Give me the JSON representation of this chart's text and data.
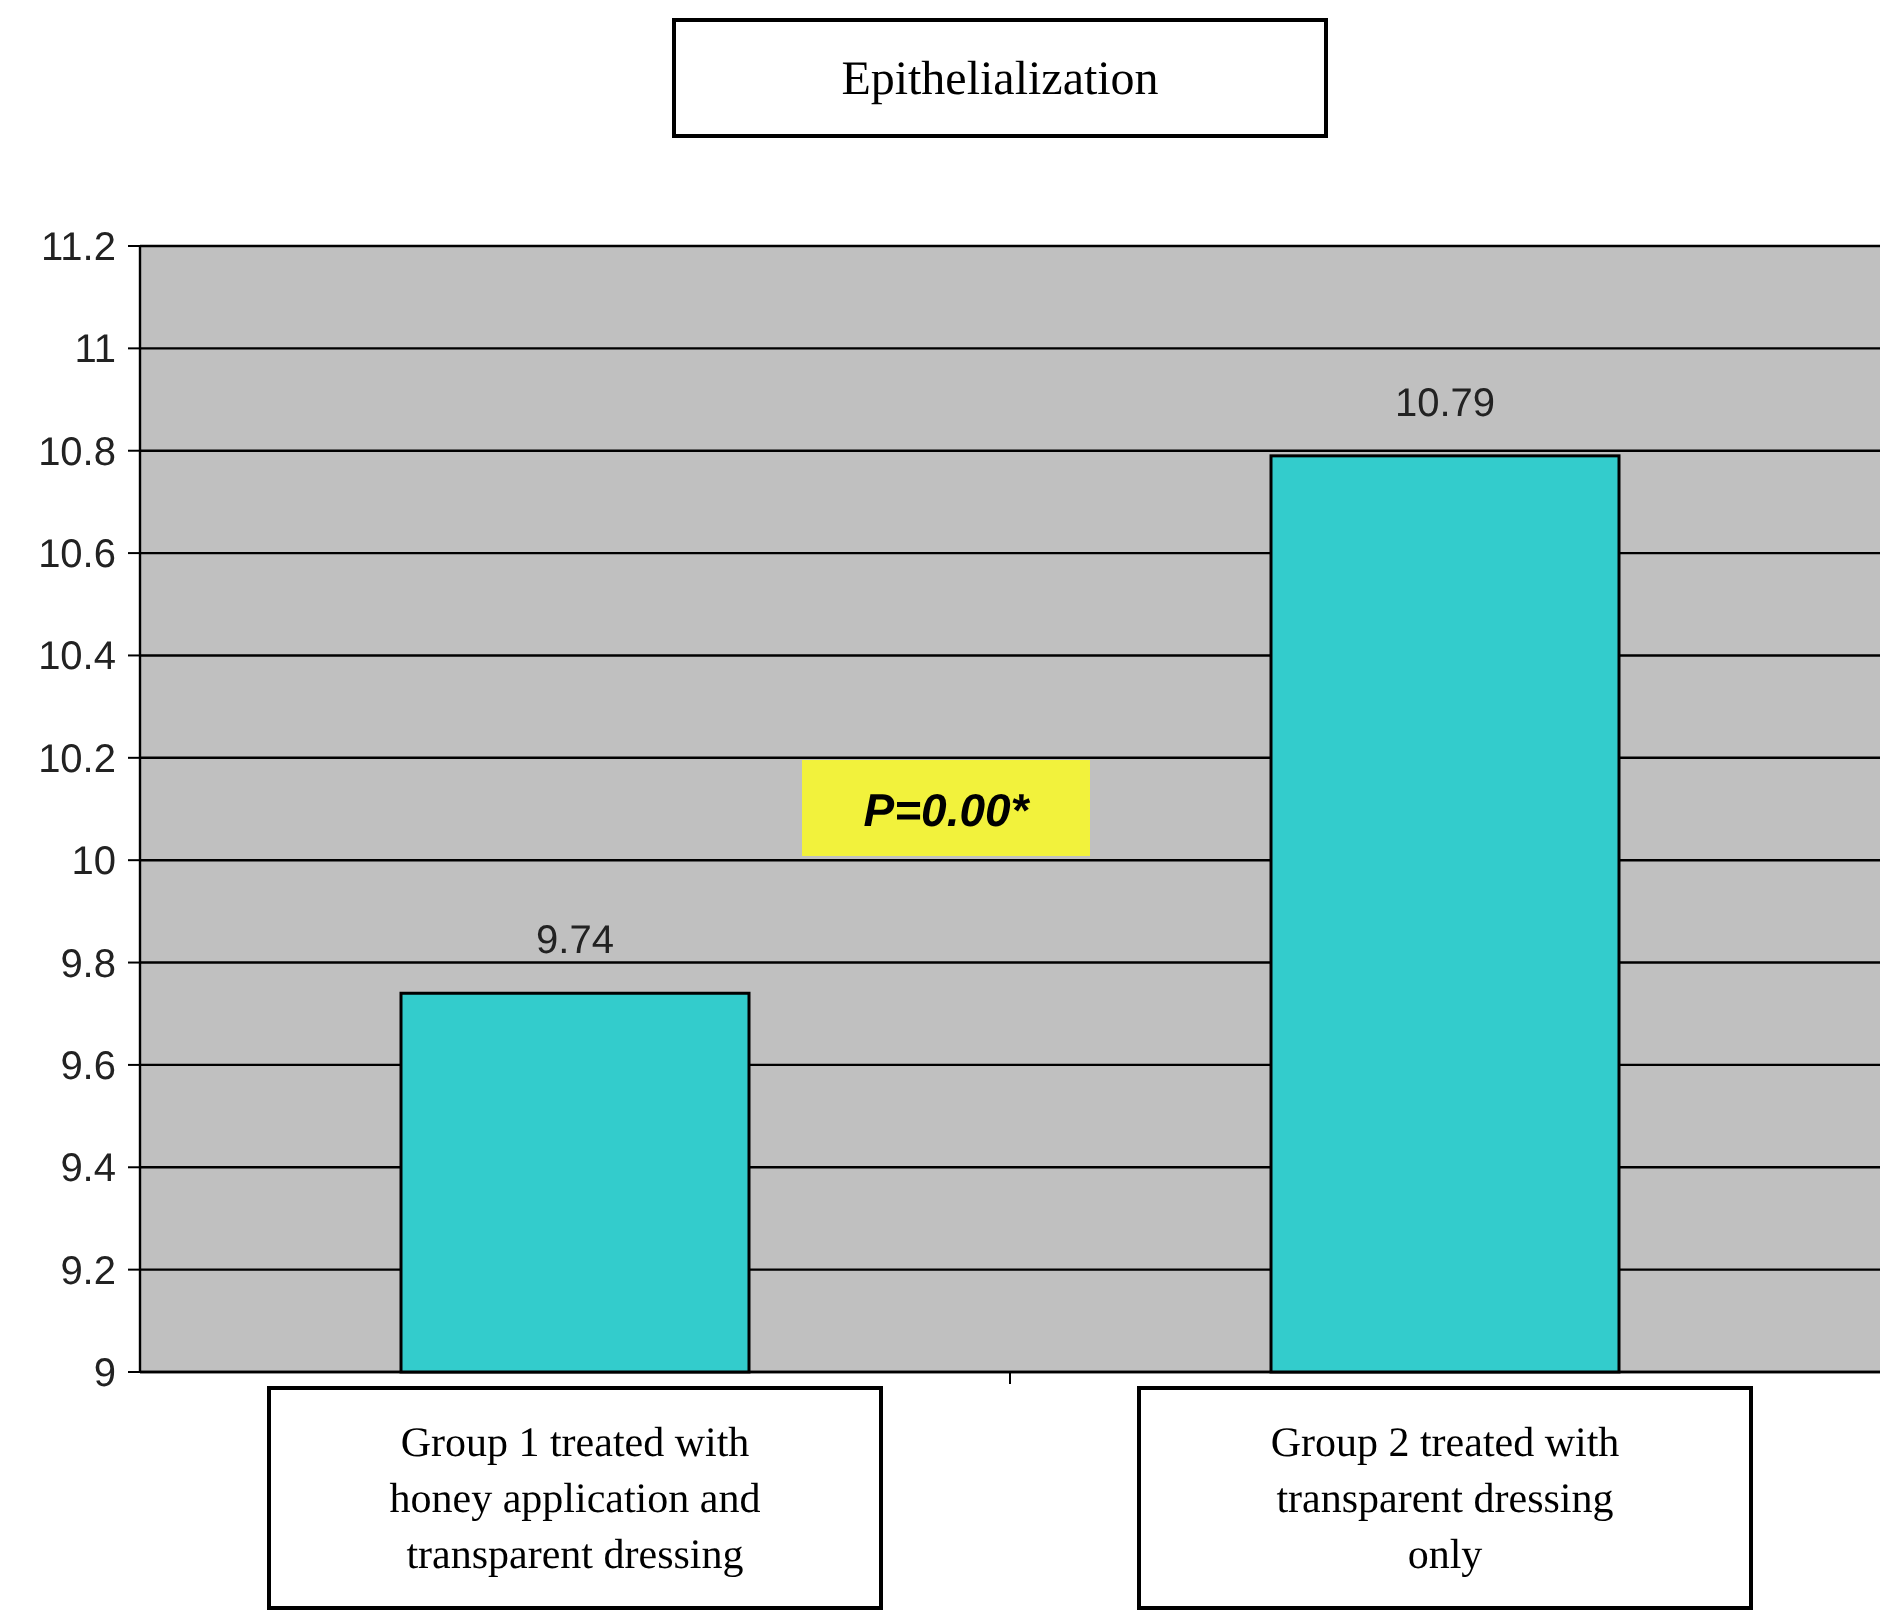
{
  "chart_data": {
    "type": "bar",
    "title": "Epithelialization",
    "categories": [
      "Group 1 treated with honey application and transparent dressing",
      "Group 2 treated with transparent dressing only"
    ],
    "values": [
      9.74,
      10.79
    ],
    "color": "#33cccc",
    "ylim": [
      9,
      11.2
    ],
    "yticks": [
      9,
      9.2,
      9.4,
      9.6,
      9.8,
      10,
      10.2,
      10.4,
      10.6,
      10.8,
      11,
      11.2
    ],
    "grid": "y",
    "data_labels": true,
    "annotations": [
      "P=0.00*"
    ]
  }
}
